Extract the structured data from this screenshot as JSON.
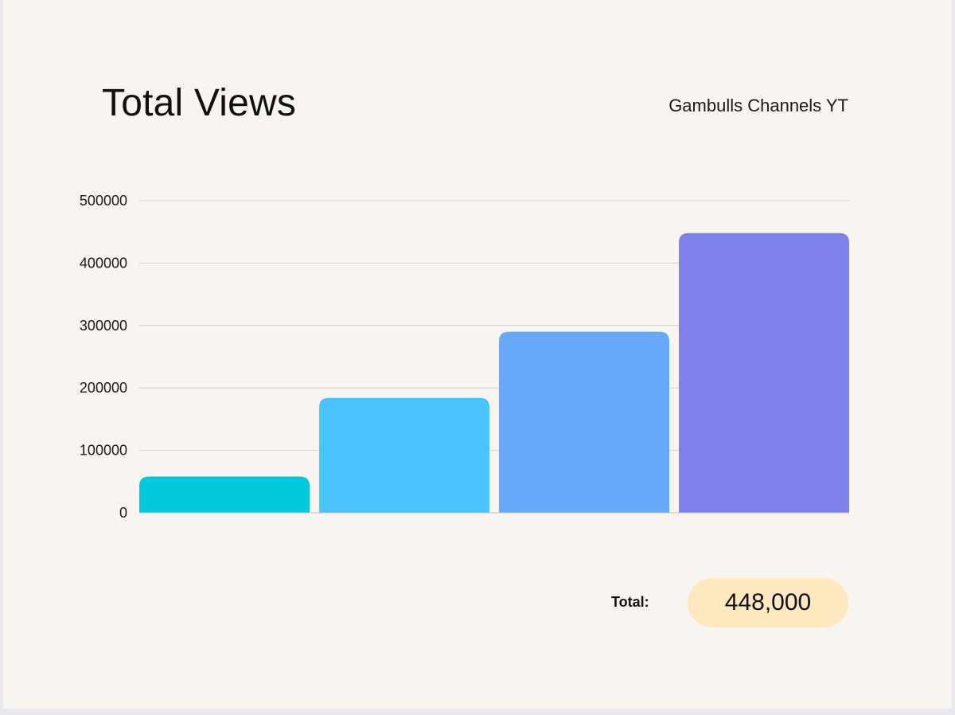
{
  "chart_data": {
    "type": "bar",
    "title": "Total Views",
    "subtitle": "Gambulls Channels YT",
    "xlabel": "",
    "ylabel": "",
    "ylim": [
      0,
      500000
    ],
    "yticks": [
      0,
      100000,
      200000,
      300000,
      400000,
      500000
    ],
    "ytick_labels": [
      "0",
      "100000",
      "200000",
      "300000",
      "400000",
      "500000"
    ],
    "grid": true,
    "values": [
      58000,
      184000,
      290000,
      448000
    ],
    "colors": [
      "#00c9dc",
      "#49c4fc",
      "#66a9f8",
      "#7f82ea"
    ]
  },
  "total": {
    "label": "Total:",
    "value": "448,000"
  },
  "colors": {
    "background": "#f8f5f0",
    "outer": "#e9e8ec",
    "gridline": "#cfcfcf",
    "pill": "#fde8bf"
  }
}
